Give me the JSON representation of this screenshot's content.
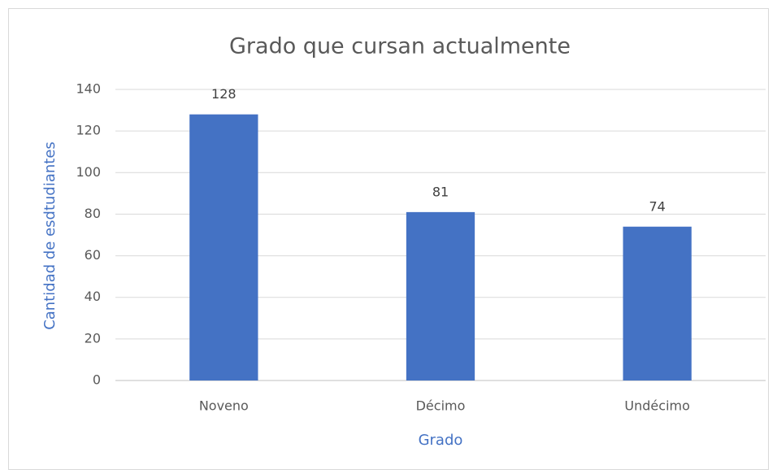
{
  "chart_data": {
    "type": "bar",
    "title": "Grado que cursan actualmente",
    "x_label": "Grado",
    "y_label": "Cantidad de esdtudiantes",
    "categories": [
      "Noveno",
      "Décimo",
      "Undécimo"
    ],
    "values": [
      128,
      81,
      74
    ],
    "color": "#4472c4",
    "ylim": [
      0,
      140
    ],
    "yticks": [
      0,
      20,
      40,
      60,
      80,
      100,
      120,
      140
    ],
    "grid": true
  }
}
